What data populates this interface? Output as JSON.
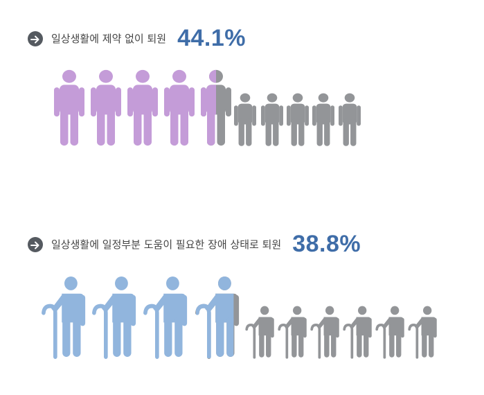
{
  "chart_data": [
    {
      "type": "pictogram",
      "title": "일상생활에 제약 없이 퇴원",
      "value_label": "44.1%",
      "value": 44.1,
      "icon": "standing-person-icon",
      "icon_count": 10,
      "filled_icons": 4.5,
      "fill_color": "#c49cd8",
      "empty_color": "#939598"
    },
    {
      "type": "pictogram",
      "title": "일상생활에 일정부분 도움이 필요한 장애 상태로 퇴원",
      "value_label": "38.8%",
      "value": 38.8,
      "icon": "person-with-cane-icon",
      "icon_count": 10,
      "filled_icons": 3.85,
      "fill_color": "#91b5dd",
      "empty_color": "#939598"
    }
  ]
}
